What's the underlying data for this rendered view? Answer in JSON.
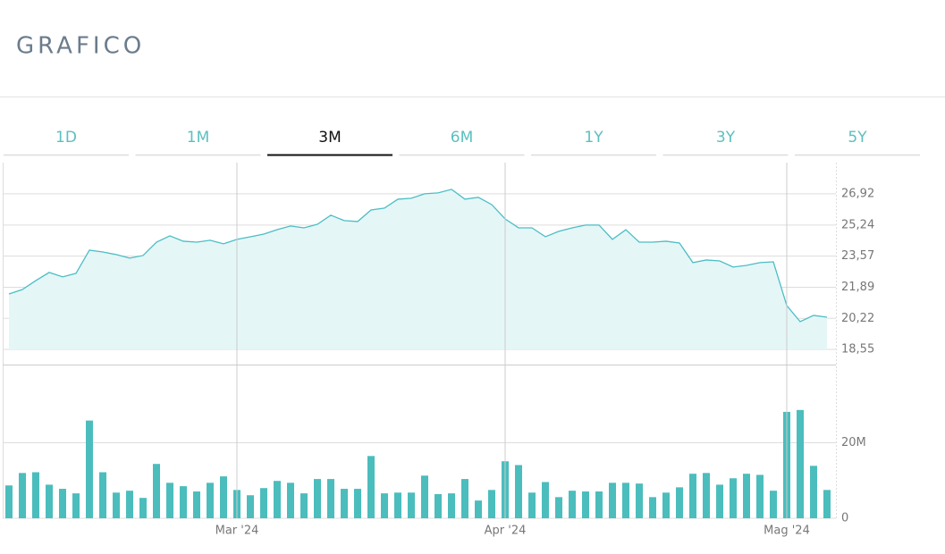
{
  "header": {
    "title": "GRAFICO"
  },
  "tabs": [
    "1D",
    "1M",
    "3M",
    "6M",
    "1Y",
    "3Y",
    "5Y"
  ],
  "selected_tab": 2,
  "chart_data": [
    {
      "type": "line",
      "color": "#4bbec4",
      "fill": "#e5f6f7",
      "values": [
        21.53,
        21.77,
        22.25,
        22.69,
        22.45,
        22.64,
        23.89,
        23.79,
        23.65,
        23.46,
        23.6,
        24.32,
        24.66,
        24.37,
        24.32,
        24.42,
        24.23,
        24.47,
        24.61,
        24.75,
        24.99,
        25.19,
        25.09,
        25.28,
        25.77,
        25.48,
        25.43,
        26.05,
        26.15,
        26.63,
        26.68,
        26.92,
        26.97,
        27.16,
        26.63,
        26.73,
        26.34,
        25.57,
        25.09,
        25.09,
        24.61,
        24.9,
        25.09,
        25.24,
        25.24,
        24.47,
        24.99,
        24.32,
        24.32,
        24.37,
        24.27,
        23.22,
        23.36,
        23.31,
        22.98,
        23.07,
        23.22,
        23.26,
        20.91,
        20.04,
        20.38,
        20.28
      ],
      "ylim": [
        18.55,
        28.55
      ],
      "yticks": [
        {
          "value": 18.55,
          "label": "18,55"
        },
        {
          "value": 20.22,
          "label": "20,22"
        },
        {
          "value": 21.89,
          "label": "21,89"
        },
        {
          "value": 23.57,
          "label": "23,57"
        },
        {
          "value": 25.24,
          "label": "25,24"
        },
        {
          "value": 26.92,
          "label": "26,92"
        }
      ],
      "grid": true
    },
    {
      "type": "bar",
      "color": "#4bbdbd",
      "categories": [
        null,
        null,
        null,
        null,
        null,
        null,
        null,
        null,
        null,
        null,
        null,
        null,
        null,
        null,
        null,
        null,
        null,
        "Mar '24",
        null,
        null,
        null,
        null,
        null,
        null,
        null,
        null,
        null,
        null,
        null,
        null,
        null,
        null,
        null,
        null,
        null,
        null,
        null,
        "Apr '24",
        null,
        null,
        null,
        null,
        null,
        null,
        null,
        null,
        null,
        null,
        null,
        null,
        null,
        null,
        null,
        null,
        null,
        null,
        null,
        null,
        "Mag '24",
        null,
        null,
        null
      ],
      "values": [
        8700000,
        12000000,
        12200000,
        8900000,
        7800000,
        6600000,
        25900000,
        12200000,
        6800000,
        7300000,
        5400000,
        14400000,
        9400000,
        8500000,
        7100000,
        9400000,
        11100000,
        7500000,
        6100000,
        8000000,
        9900000,
        9400000,
        6600000,
        10400000,
        10400000,
        7800000,
        7800000,
        16500000,
        6600000,
        6800000,
        6800000,
        11300000,
        6400000,
        6600000,
        10400000,
        4700000,
        7500000,
        15100000,
        14100000,
        6800000,
        9600000,
        5600000,
        7300000,
        7100000,
        7100000,
        9400000,
        9400000,
        9200000,
        5600000,
        6800000,
        8200000,
        11800000,
        12000000,
        8900000,
        10600000,
        11800000,
        11500000,
        7300000,
        28200000,
        28700000,
        13900000,
        7500000
      ],
      "ylim": [
        0,
        40500000
      ],
      "yticks": [
        0,
        {
          "value": 20000000,
          "label": "20M"
        }
      ],
      "grid": true
    }
  ]
}
